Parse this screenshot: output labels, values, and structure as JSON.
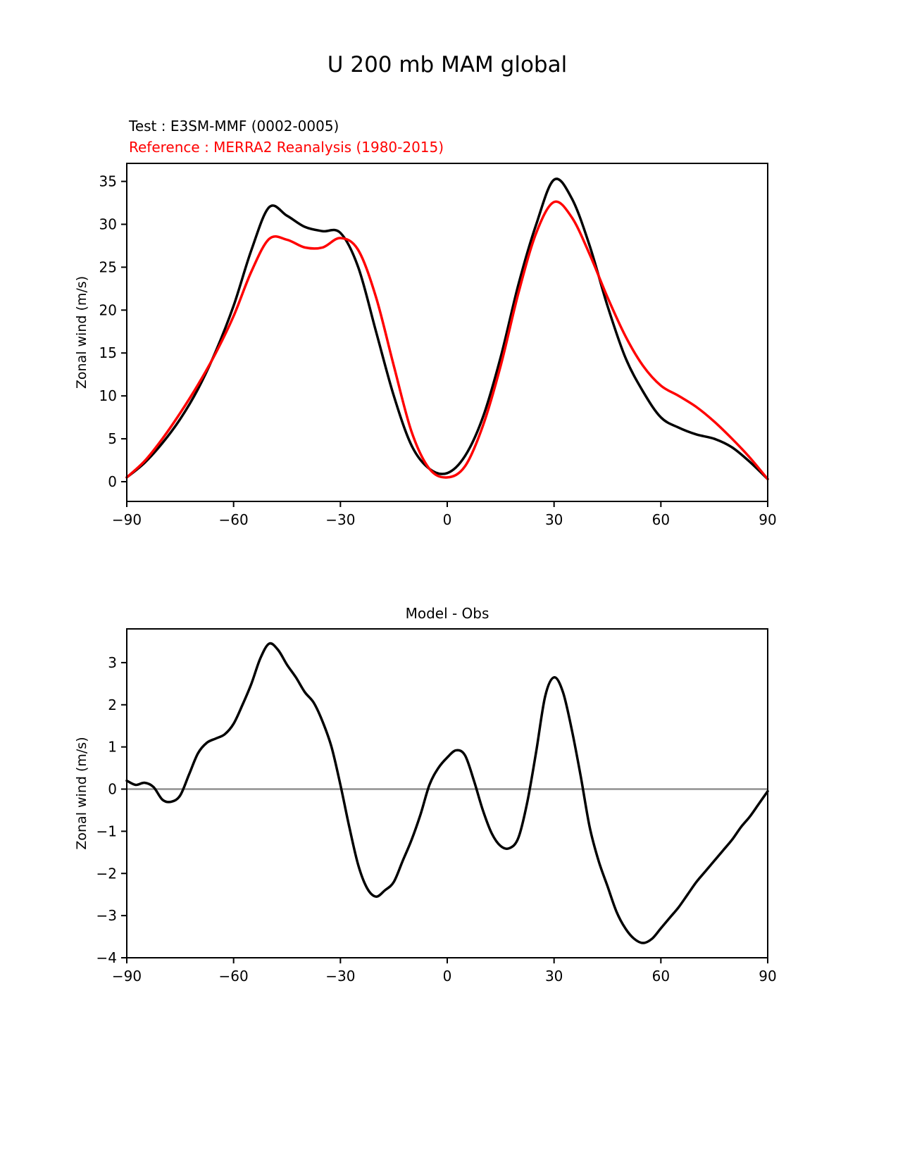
{
  "figure": {
    "title": "U 200 mb MAM global",
    "legend": {
      "test": "Test : E3SM-MMF (0002-0005)",
      "reference": "Reference : MERRA2 Reanalysis (1980-2015)"
    },
    "colors": {
      "test": "#000000",
      "reference": "#ff0000",
      "zero_line": "#909090"
    }
  },
  "chart_data": [
    {
      "type": "line",
      "title": "U 200 mb MAM global",
      "xlabel": "",
      "ylabel": "Zonal wind (m/s)",
      "xlim": [
        -90,
        90
      ],
      "ylim": [
        -2.3,
        37.1
      ],
      "xticks": [
        -90,
        -60,
        -30,
        0,
        30,
        60,
        90
      ],
      "xtick_labels": [
        "−90",
        "−60",
        "−30",
        "0",
        "30",
        "60",
        "90"
      ],
      "yticks": [
        0,
        5,
        10,
        15,
        20,
        25,
        30,
        35
      ],
      "ytick_labels": [
        "0",
        "5",
        "10",
        "15",
        "20",
        "25",
        "30",
        "35"
      ],
      "grid": false,
      "legend_position": "upper-left-outside",
      "zero_line": false,
      "x": [
        -90,
        -85,
        -80,
        -75,
        -70,
        -65,
        -60,
        -55,
        -50,
        -45,
        -40,
        -35,
        -30,
        -25,
        -20,
        -15,
        -10,
        -5,
        0,
        5,
        10,
        15,
        20,
        25,
        30,
        35,
        40,
        45,
        50,
        55,
        60,
        65,
        70,
        75,
        80,
        85,
        90
      ],
      "series": [
        {
          "name": "Test : E3SM-MMF (0002-0005)",
          "color": "#000000",
          "values": [
            0.5,
            2.2,
            4.5,
            7.3,
            10.8,
            15.2,
            20.5,
            27.0,
            32.0,
            31.0,
            29.7,
            29.2,
            29.0,
            25.0,
            17.5,
            10.0,
            4.2,
            1.5,
            1.0,
            3.0,
            7.5,
            14.5,
            23.0,
            30.0,
            35.2,
            33.0,
            27.5,
            20.5,
            14.5,
            10.5,
            7.5,
            6.3,
            5.5,
            5.0,
            4.0,
            2.3,
            0.3
          ]
        },
        {
          "name": "Reference : MERRA2 Reanalysis (1980-2015)",
          "color": "#ff0000",
          "values": [
            0.5,
            2.4,
            5.0,
            8.0,
            11.3,
            15.0,
            19.3,
            24.5,
            28.3,
            28.2,
            27.3,
            27.3,
            28.4,
            27.0,
            21.5,
            13.5,
            5.8,
            1.5,
            0.5,
            1.8,
            6.5,
            13.5,
            22.0,
            29.0,
            32.6,
            30.8,
            26.5,
            21.5,
            17.0,
            13.5,
            11.2,
            10.0,
            8.7,
            7.0,
            5.0,
            2.8,
            0.3
          ]
        }
      ]
    },
    {
      "type": "line",
      "title": "Model - Obs",
      "xlabel": "",
      "ylabel": "Zonal wind (m/s)",
      "xlim": [
        -90,
        90
      ],
      "ylim": [
        -4,
        3.8
      ],
      "xticks": [
        -90,
        -60,
        -30,
        0,
        30,
        60,
        90
      ],
      "xtick_labels": [
        "−90",
        "−60",
        "−30",
        "0",
        "30",
        "60",
        "90"
      ],
      "yticks": [
        -4,
        -3,
        -2,
        -1,
        0,
        1,
        2,
        3
      ],
      "ytick_labels": [
        "−4",
        "−3",
        "−2",
        "−1",
        "0",
        "1",
        "2",
        "3"
      ],
      "grid": false,
      "zero_line": true,
      "x": [
        -90,
        -87.5,
        -85,
        -82.5,
        -80,
        -77.5,
        -75,
        -72.5,
        -70,
        -67.5,
        -65,
        -62.5,
        -60,
        -57.5,
        -55,
        -52.5,
        -50,
        -47.5,
        -45,
        -42.5,
        -40,
        -37.5,
        -35,
        -32.5,
        -30,
        -27.5,
        -25,
        -22.5,
        -20,
        -17.5,
        -15,
        -12.5,
        -10,
        -7.5,
        -5,
        -2.5,
        0,
        2.5,
        5,
        7.5,
        10,
        12.5,
        15,
        17.5,
        20,
        22.5,
        25,
        27.5,
        30,
        32.5,
        35,
        37.5,
        40,
        42.5,
        45,
        47.5,
        50,
        52.5,
        55,
        57.5,
        60,
        62.5,
        65,
        67.5,
        70,
        72.5,
        75,
        77.5,
        80,
        82.5,
        85,
        87.5,
        90
      ],
      "series": [
        {
          "name": "Model - Obs",
          "color": "#000000",
          "values": [
            0.2,
            0.1,
            0.15,
            0.05,
            -0.25,
            -0.3,
            -0.15,
            0.35,
            0.85,
            1.1,
            1.2,
            1.3,
            1.55,
            2.0,
            2.5,
            3.1,
            3.45,
            3.3,
            2.95,
            2.65,
            2.3,
            2.05,
            1.6,
            1.0,
            0.1,
            -0.9,
            -1.8,
            -2.35,
            -2.55,
            -2.4,
            -2.2,
            -1.7,
            -1.2,
            -0.6,
            0.1,
            0.5,
            0.75,
            0.92,
            0.8,
            0.2,
            -0.5,
            -1.05,
            -1.35,
            -1.4,
            -1.15,
            -0.3,
            0.9,
            2.2,
            2.65,
            2.3,
            1.4,
            0.3,
            -0.9,
            -1.7,
            -2.3,
            -2.9,
            -3.3,
            -3.55,
            -3.65,
            -3.55,
            -3.3,
            -3.05,
            -2.8,
            -2.5,
            -2.2,
            -1.95,
            -1.7,
            -1.45,
            -1.2,
            -0.9,
            -0.65,
            -0.35,
            -0.05
          ]
        }
      ]
    }
  ]
}
